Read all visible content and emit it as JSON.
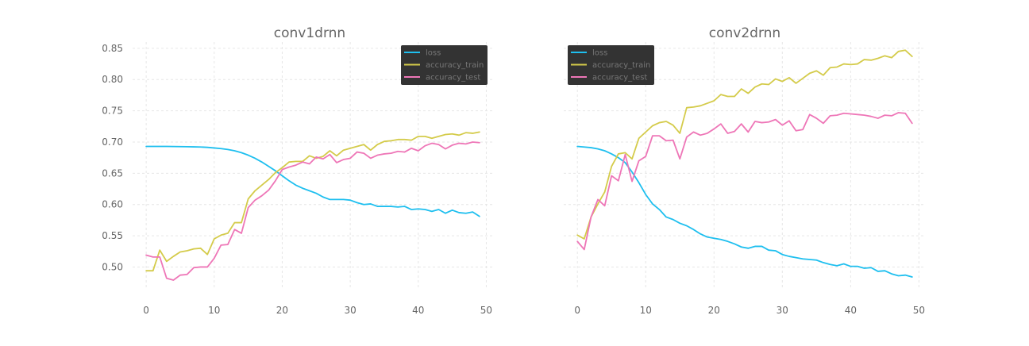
{
  "colors": {
    "loss": "#1ebfef",
    "accuracy_train": "#d4cb4a",
    "accuracy_test": "#ee76b7",
    "grid": "#e6e6e6",
    "text": "#666666",
    "legend_bg": "#333333",
    "legend_text": "#777777"
  },
  "chart_data": [
    {
      "type": "line",
      "title": "conv1drnn",
      "xlabel": "",
      "ylabel": "",
      "xlim": [
        -2,
        51
      ],
      "ylim": [
        0.465,
        0.86
      ],
      "xticks": [
        0,
        10,
        20,
        30,
        40,
        50
      ],
      "yticks": [
        0.5,
        0.55,
        0.6,
        0.65,
        0.7,
        0.75,
        0.8,
        0.85
      ],
      "ytick_labels": [
        "0.50",
        "0.55",
        "0.60",
        "0.65",
        "0.70",
        "0.75",
        "0.80",
        "0.85"
      ],
      "grid": true,
      "legend_position": "top-right",
      "x": [
        0,
        1,
        2,
        3,
        4,
        5,
        6,
        7,
        8,
        9,
        10,
        11,
        12,
        13,
        14,
        15,
        16,
        17,
        18,
        19,
        20,
        21,
        22,
        23,
        24,
        25,
        26,
        27,
        28,
        29,
        30,
        31,
        32,
        33,
        34,
        35,
        36,
        37,
        38,
        39,
        40,
        41,
        42,
        43,
        44,
        45,
        46,
        47,
        48,
        49
      ],
      "series": [
        {
          "name": "loss",
          "values": [
            0.693,
            0.693,
            0.693,
            0.693,
            0.6928,
            0.6927,
            0.6925,
            0.6923,
            0.692,
            0.6915,
            0.6905,
            0.6895,
            0.688,
            0.686,
            0.683,
            0.679,
            0.674,
            0.668,
            0.661,
            0.654,
            0.646,
            0.638,
            0.631,
            0.626,
            0.622,
            0.618,
            0.612,
            0.608,
            0.608,
            0.608,
            0.607,
            0.603,
            0.6,
            0.601,
            0.597,
            0.597,
            0.597,
            0.596,
            0.597,
            0.592,
            0.593,
            0.592,
            0.589,
            0.592,
            0.586,
            0.591,
            0.587,
            0.586,
            0.588,
            0.581
          ]
        },
        {
          "name": "accuracy_train",
          "values": [
            0.494,
            0.494,
            0.527,
            0.509,
            0.517,
            0.524,
            0.526,
            0.529,
            0.53,
            0.52,
            0.545,
            0.551,
            0.554,
            0.571,
            0.571,
            0.609,
            0.622,
            0.631,
            0.64,
            0.651,
            0.659,
            0.668,
            0.669,
            0.669,
            0.678,
            0.674,
            0.677,
            0.686,
            0.678,
            0.687,
            0.69,
            0.693,
            0.696,
            0.687,
            0.696,
            0.701,
            0.702,
            0.704,
            0.704,
            0.703,
            0.709,
            0.709,
            0.706,
            0.709,
            0.712,
            0.713,
            0.711,
            0.715,
            0.714,
            0.716
          ]
        },
        {
          "name": "accuracy_test",
          "values": [
            0.519,
            0.516,
            0.516,
            0.482,
            0.479,
            0.487,
            0.488,
            0.499,
            0.5,
            0.5,
            0.514,
            0.535,
            0.536,
            0.56,
            0.554,
            0.595,
            0.607,
            0.614,
            0.623,
            0.638,
            0.656,
            0.66,
            0.663,
            0.668,
            0.665,
            0.676,
            0.673,
            0.68,
            0.667,
            0.672,
            0.674,
            0.684,
            0.682,
            0.674,
            0.679,
            0.681,
            0.682,
            0.685,
            0.684,
            0.69,
            0.686,
            0.694,
            0.698,
            0.696,
            0.689,
            0.695,
            0.698,
            0.697,
            0.7,
            0.699
          ]
        }
      ]
    },
    {
      "type": "line",
      "title": "conv2drnn",
      "xlabel": "",
      "ylabel": "",
      "xlim": [
        -2,
        51
      ],
      "ylim": [
        0.465,
        0.86
      ],
      "xticks": [
        0,
        10,
        20,
        30,
        40,
        50
      ],
      "yticks": [
        0.5,
        0.55,
        0.6,
        0.65,
        0.7,
        0.75,
        0.8,
        0.85
      ],
      "ytick_labels": [],
      "grid": true,
      "legend_position": "top-left",
      "x": [
        0,
        1,
        2,
        3,
        4,
        5,
        6,
        7,
        8,
        9,
        10,
        11,
        12,
        13,
        14,
        15,
        16,
        17,
        18,
        19,
        20,
        21,
        22,
        23,
        24,
        25,
        26,
        27,
        28,
        29,
        30,
        31,
        32,
        33,
        34,
        35,
        36,
        37,
        38,
        39,
        40,
        41,
        42,
        43,
        44,
        45,
        46,
        47,
        48,
        49
      ],
      "series": [
        {
          "name": "loss",
          "values": [
            0.693,
            0.692,
            0.691,
            0.689,
            0.686,
            0.681,
            0.675,
            0.667,
            0.652,
            0.635,
            0.616,
            0.601,
            0.592,
            0.58,
            0.576,
            0.57,
            0.566,
            0.56,
            0.553,
            0.548,
            0.546,
            0.544,
            0.541,
            0.537,
            0.532,
            0.53,
            0.533,
            0.533,
            0.527,
            0.526,
            0.52,
            0.517,
            0.515,
            0.513,
            0.512,
            0.511,
            0.507,
            0.504,
            0.502,
            0.505,
            0.501,
            0.501,
            0.498,
            0.499,
            0.493,
            0.494,
            0.489,
            0.486,
            0.487,
            0.484
          ]
        },
        {
          "name": "accuracy_train",
          "values": [
            0.551,
            0.545,
            0.58,
            0.601,
            0.62,
            0.661,
            0.681,
            0.683,
            0.673,
            0.706,
            0.716,
            0.726,
            0.731,
            0.733,
            0.727,
            0.714,
            0.755,
            0.756,
            0.758,
            0.762,
            0.766,
            0.776,
            0.773,
            0.773,
            0.785,
            0.778,
            0.788,
            0.793,
            0.792,
            0.801,
            0.797,
            0.803,
            0.794,
            0.802,
            0.81,
            0.814,
            0.807,
            0.819,
            0.82,
            0.825,
            0.824,
            0.825,
            0.832,
            0.831,
            0.834,
            0.838,
            0.835,
            0.845,
            0.847,
            0.837
          ]
        },
        {
          "name": "accuracy_test",
          "values": [
            0.541,
            0.528,
            0.58,
            0.608,
            0.598,
            0.646,
            0.638,
            0.68,
            0.637,
            0.67,
            0.677,
            0.71,
            0.71,
            0.702,
            0.703,
            0.673,
            0.708,
            0.716,
            0.711,
            0.714,
            0.721,
            0.729,
            0.714,
            0.717,
            0.729,
            0.716,
            0.733,
            0.731,
            0.732,
            0.736,
            0.727,
            0.734,
            0.718,
            0.72,
            0.744,
            0.738,
            0.73,
            0.742,
            0.743,
            0.746,
            0.745,
            0.744,
            0.743,
            0.741,
            0.738,
            0.743,
            0.742,
            0.747,
            0.746,
            0.73
          ]
        }
      ]
    }
  ]
}
